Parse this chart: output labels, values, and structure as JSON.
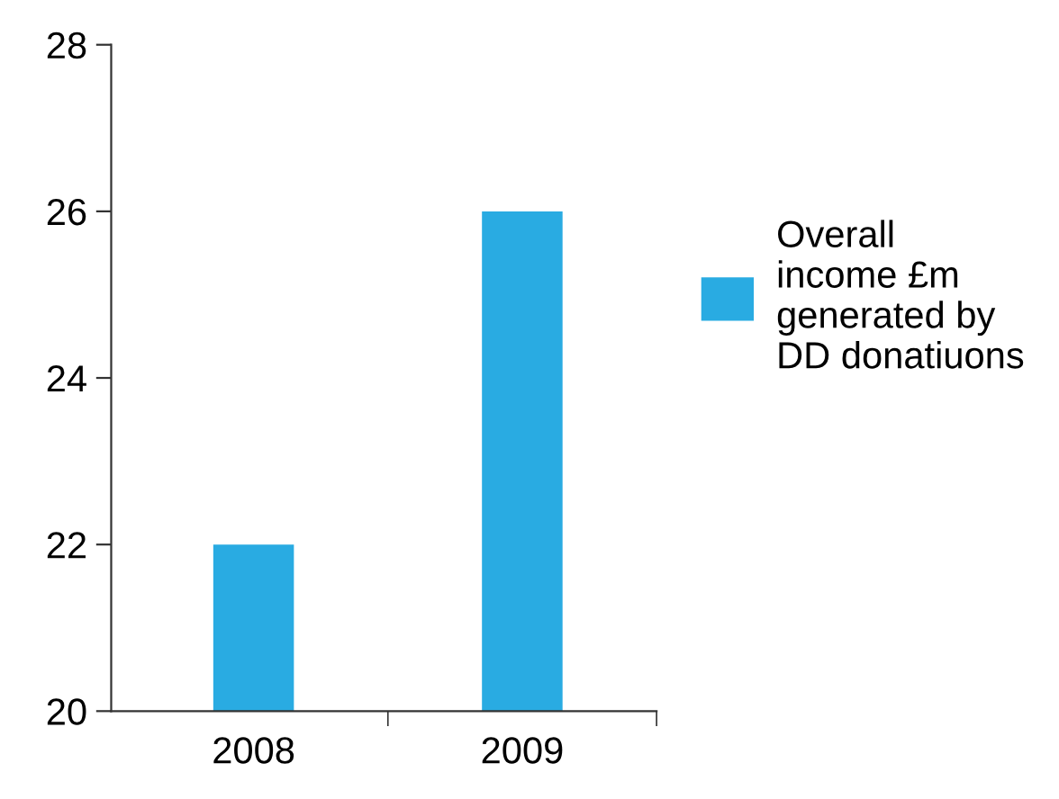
{
  "chart_data": {
    "type": "bar",
    "categories": [
      "2008",
      "2009"
    ],
    "series": [
      {
        "name": "Overall\nincome £m\ngenerated by\nDD donatiuons",
        "color": "#29abe2",
        "values": [
          22,
          26
        ]
      }
    ],
    "ylim": [
      20,
      28
    ],
    "yticks": [
      20,
      22,
      24,
      26,
      28
    ],
    "grid": false,
    "legend": "right"
  }
}
